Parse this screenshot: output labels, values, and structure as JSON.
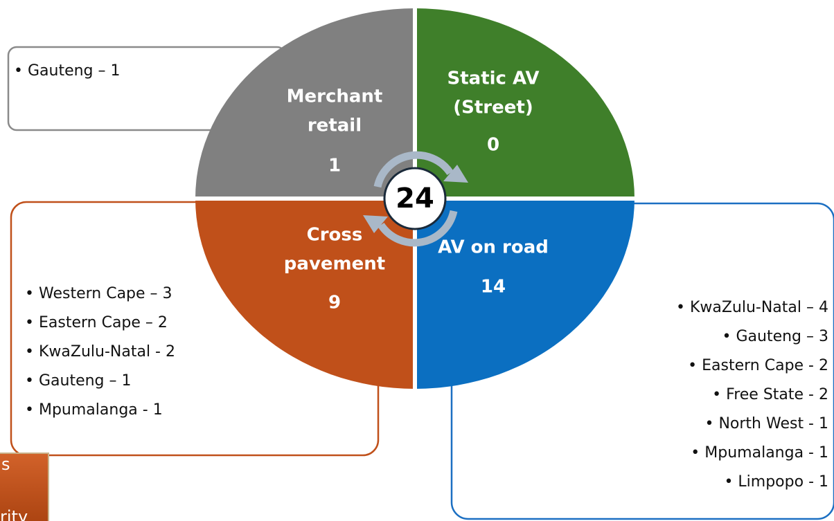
{
  "total": "24",
  "quadrants": [
    {
      "lines": [
        "Merchant",
        "retail"
      ],
      "count": "1"
    },
    {
      "lines": [
        "Static AV",
        "(Street)"
      ],
      "count": "0"
    },
    {
      "lines": [
        "Cross",
        "pavement"
      ],
      "count": "9"
    },
    {
      "lines": [
        "AV on road"
      ],
      "count": "14"
    }
  ],
  "lists": {
    "merchant": [
      "Gauteng – 1"
    ],
    "cross": [
      "Western Cape – 3",
      "Eastern Cape – 2",
      "KwaZulu-Natal - 2",
      "Gauteng – 1",
      "Mpumalanga - 1"
    ],
    "road": [
      "KwaZulu-Natal – 4",
      "Gauteng – 3",
      "Eastern Cape - 2",
      "Free State - 2",
      "North West - 1",
      "Mpumalanga - 1",
      "Limpopo - 1"
    ]
  },
  "corner": {
    "lines": [
      "s",
      "rity"
    ]
  }
}
